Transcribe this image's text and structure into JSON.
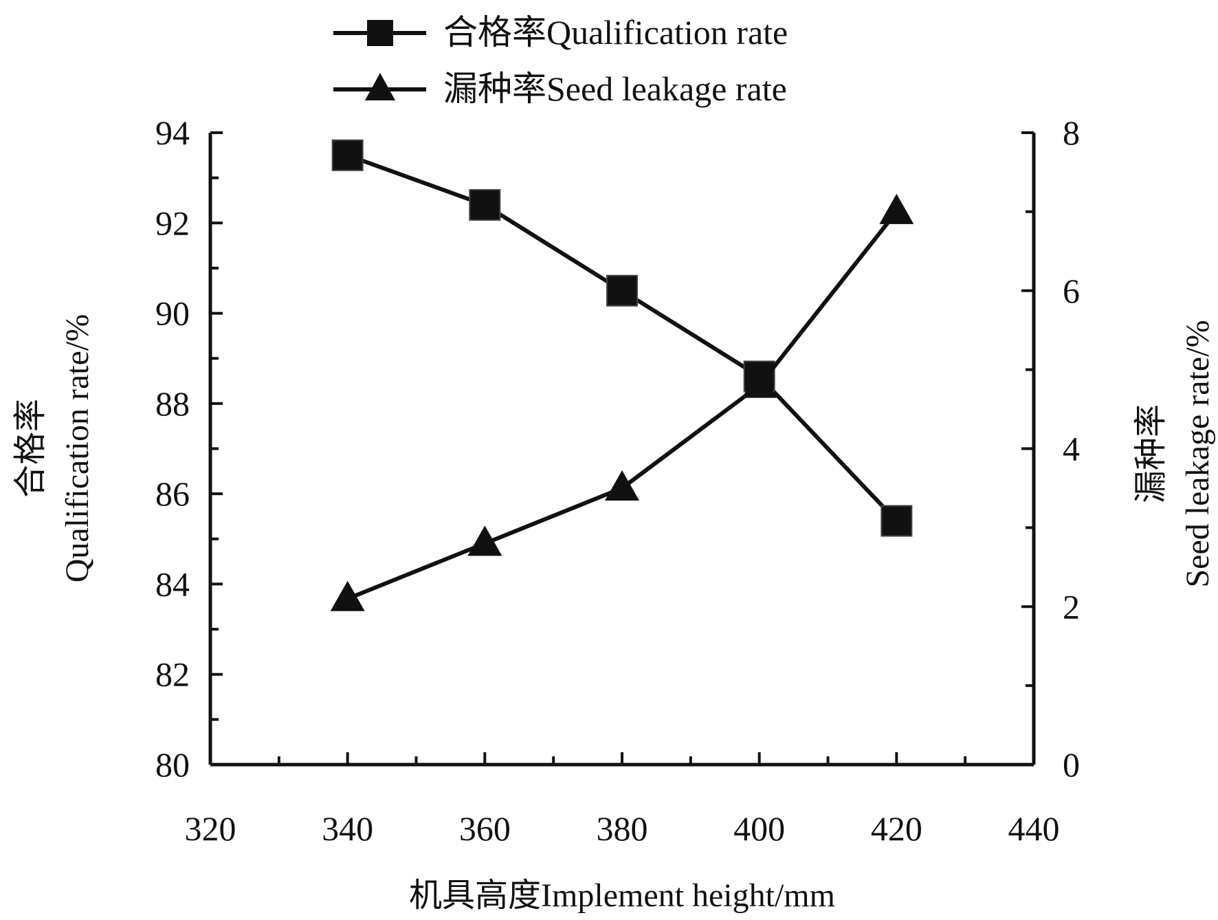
{
  "chart_data": {
    "type": "line",
    "title": "",
    "xlabel": "机具高度Implement height/mm",
    "ylabel_left": "合格率Qualification rate/%",
    "ylabel_left_parts": [
      "合格率",
      "Qualification rate/%"
    ],
    "ylabel_right": "漏种率Seed leakage rate/%",
    "ylabel_right_parts": [
      "漏种率",
      "Seed leakage rate/%"
    ],
    "xlim": [
      320,
      440
    ],
    "ylim_left": [
      80,
      94
    ],
    "ylim_right": [
      0,
      8
    ],
    "x_ticks": [
      "320",
      "340",
      "360",
      "380",
      "400",
      "420",
      "440"
    ],
    "y_left_ticks": [
      "80",
      "82",
      "84",
      "86",
      "88",
      "90",
      "92",
      "94"
    ],
    "y_right_ticks": [
      "0",
      "2",
      "4",
      "6",
      "8"
    ],
    "grid": false,
    "legend_position": "top-center",
    "x": [
      340,
      360,
      380,
      400,
      420
    ],
    "series": [
      {
        "name": "合格率Qualification rate",
        "axis": "left",
        "marker": "square",
        "values": [
          93.5,
          92.4,
          90.5,
          88.6,
          85.4
        ]
      },
      {
        "name": "漏种率Seed leakage rate",
        "axis": "right",
        "marker": "triangle",
        "values": [
          2.1,
          2.8,
          3.5,
          4.8,
          7.0
        ]
      }
    ],
    "color": "#111111"
  }
}
